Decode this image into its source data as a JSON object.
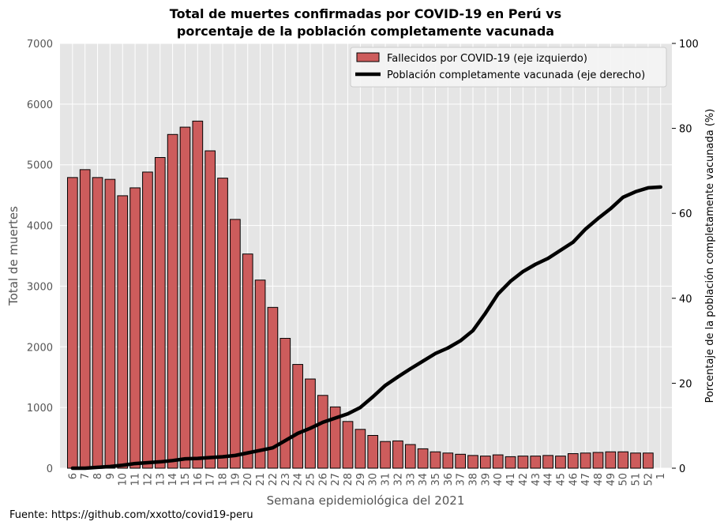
{
  "chart_data": {
    "type": "bar",
    "title_line1": "Total de muertes confirmadas por COVID-19 en Perú vs",
    "title_line2": "porcentaje de la población completamente vacunada",
    "xlabel": "Semana epidemiológica del 2021",
    "ylabel": "Total de muertes",
    "ylabel_right": "Porcentaje de la población completamente vacunada (%)",
    "ylim": [
      0,
      7000
    ],
    "yticks": [
      0,
      1000,
      2000,
      3000,
      4000,
      5000,
      6000,
      7000
    ],
    "ylim_right": [
      0,
      100
    ],
    "yticks_right": [
      0,
      20,
      40,
      60,
      80,
      100
    ],
    "grid": true,
    "legend_position": "top-right",
    "colors": {
      "bars": "#cd5c5c",
      "bar_edge": "#000000",
      "line": "#000000",
      "background": "#e5e5e5",
      "grid": "#ffffff"
    },
    "categories": [
      "6",
      "7",
      "8",
      "9",
      "10",
      "11",
      "12",
      "13",
      "14",
      "15",
      "16",
      "17",
      "18",
      "19",
      "20",
      "21",
      "22",
      "23",
      "24",
      "25",
      "26",
      "27",
      "28",
      "29",
      "30",
      "31",
      "32",
      "33",
      "34",
      "35",
      "36",
      "37",
      "38",
      "39",
      "40",
      "41",
      "42",
      "43",
      "44",
      "45",
      "46",
      "47",
      "48",
      "49",
      "50",
      "51",
      "52",
      "1"
    ],
    "series": [
      {
        "name": "Fallecidos por COVID-19 (eje izquierdo)",
        "axis": "left",
        "kind": "bar",
        "values": [
          4790,
          4920,
          4790,
          4760,
          4490,
          4620,
          4880,
          5120,
          5500,
          5620,
          5720,
          5230,
          4780,
          4100,
          3530,
          3100,
          2650,
          2140,
          1710,
          1470,
          1200,
          1010,
          770,
          640,
          540,
          440,
          450,
          390,
          320,
          270,
          250,
          230,
          210,
          200,
          220,
          190,
          200,
          200,
          210,
          200,
          240,
          250,
          260,
          270,
          270,
          250,
          250,
          0
        ]
      },
      {
        "name": "Población completamente vacunada (eje derecho)",
        "axis": "right",
        "kind": "line",
        "values": [
          0,
          0,
          0.2,
          0.4,
          0.7,
          1.1,
          1.3,
          1.5,
          1.8,
          2.2,
          2.3,
          2.5,
          2.7,
          3.0,
          3.6,
          4.2,
          4.8,
          6.5,
          8.2,
          9.4,
          10.8,
          11.8,
          12.8,
          14.3,
          16.8,
          19.5,
          21.5,
          23.4,
          25.2,
          27.0,
          28.3,
          30.0,
          32.4,
          36.5,
          41.0,
          44.0,
          46.3,
          48.0,
          49.4,
          51.3,
          53.2,
          56.3,
          58.8,
          61.1,
          63.8,
          65.1,
          66.0,
          66.2
        ]
      }
    ]
  },
  "source_note": "Fuente: https://github.com/xxotto/covid19-peru"
}
